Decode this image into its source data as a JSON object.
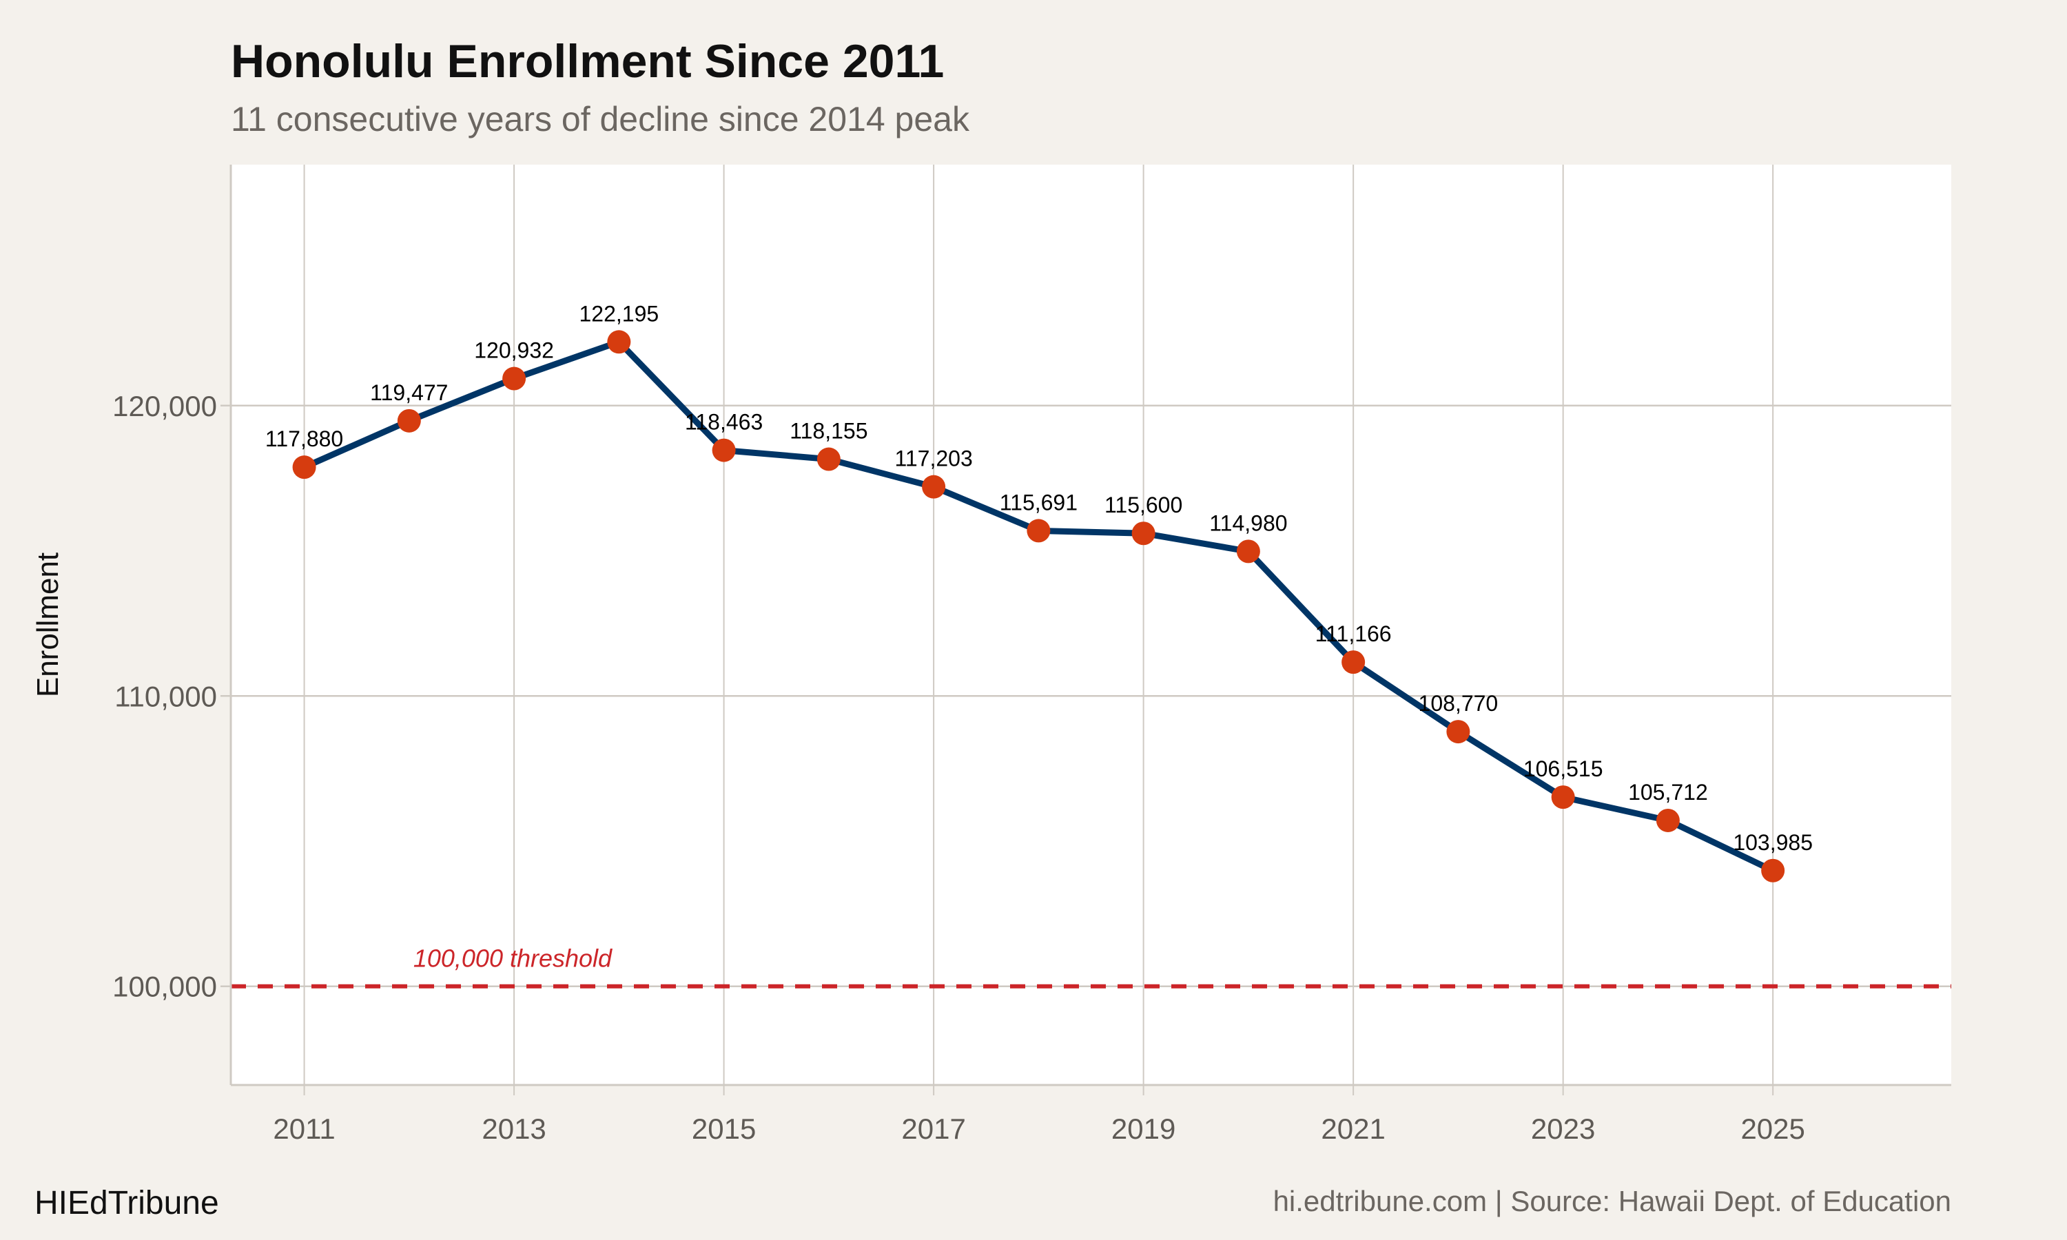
{
  "header": {
    "title": "Honolulu Enrollment Since 2011",
    "subtitle": "11 consecutive years of decline since 2014 peak"
  },
  "footer": {
    "brand": "HIEdTribune",
    "source": "hi.edtribune.com | Source: Hawaii Dept. of Education"
  },
  "chart_data": {
    "type": "line",
    "title": "Honolulu Enrollment Since 2011",
    "subtitle": "11 consecutive years of decline since 2014 peak",
    "xlabel": "",
    "ylabel": "Enrollment",
    "x": [
      2011,
      2012,
      2013,
      2014,
      2015,
      2016,
      2017,
      2018,
      2019,
      2020,
      2021,
      2022,
      2023,
      2024,
      2025
    ],
    "values": [
      117880,
      119477,
      120932,
      122195,
      118463,
      118155,
      117203,
      115691,
      115600,
      114980,
      111166,
      108770,
      106515,
      105712,
      103985
    ],
    "data_labels": [
      "117,880",
      "119,477",
      "120,932",
      "122,195",
      "118,463",
      "118,155",
      "117,203",
      "115,691",
      "115,600",
      "114,980",
      "111,166",
      "108,770",
      "106,515",
      "105,712",
      "103,985"
    ],
    "xlim": [
      2010.3,
      2026.7
    ],
    "ylim": [
      96600,
      128300
    ],
    "x_ticks": [
      "2011",
      "2013",
      "2015",
      "2017",
      "2019",
      "2021",
      "2023",
      "2025"
    ],
    "y_ticks": [
      "100,000",
      "110,000",
      "120,000"
    ],
    "y_tick_values": [
      100000,
      110000,
      120000
    ],
    "grid": true,
    "reference_line": {
      "value": 100000,
      "label": "100,000 threshold",
      "style": "dashed",
      "color": "#cc2529"
    },
    "colors": {
      "line": "#003566",
      "points": "#d63c0f",
      "background": "#f4f1ec",
      "panel": "#ffffff",
      "grid": "#cfcac3"
    }
  }
}
